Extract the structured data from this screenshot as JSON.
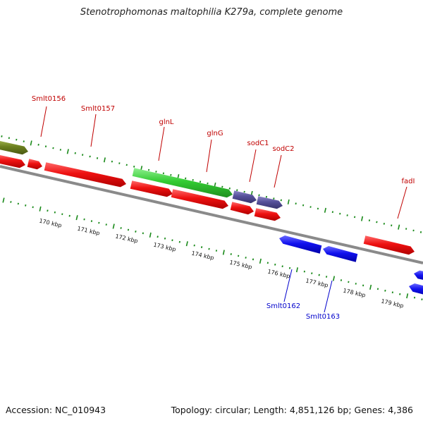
{
  "title": "Stenotrophomonas maltophilia K279a, complete genome",
  "accession": "Accession: NC_010943",
  "summary": "Topology: circular; Length: 4,851,126 bp; Genes: 4,386",
  "colors": {
    "backbone": "#8a8a8a",
    "tick": "#1a8a1a",
    "forward_label": "#c00000",
    "reverse_label": "#0000cc",
    "cds_red": "#ee1111",
    "cds_green": "#33cc33",
    "cds_purple": "#55509a",
    "cds_olive": "#6b7f1f",
    "cds_blue": "#1111ee"
  },
  "kbp_labels": [
    "170 kbp",
    "171 kbp",
    "172 kbp",
    "173 kbp",
    "174 kbp",
    "175 kbp",
    "176 kbp",
    "177 kbp",
    "178 kbp",
    "179 kbp"
  ],
  "gene_labels_forward": [
    "Smlt0156",
    "Smlt0157",
    "glnL",
    "glnG",
    "sodC1",
    "sodC2",
    "fadI"
  ],
  "gene_labels_reverse": [
    "Smlt0162",
    "Smlt0163"
  ]
}
